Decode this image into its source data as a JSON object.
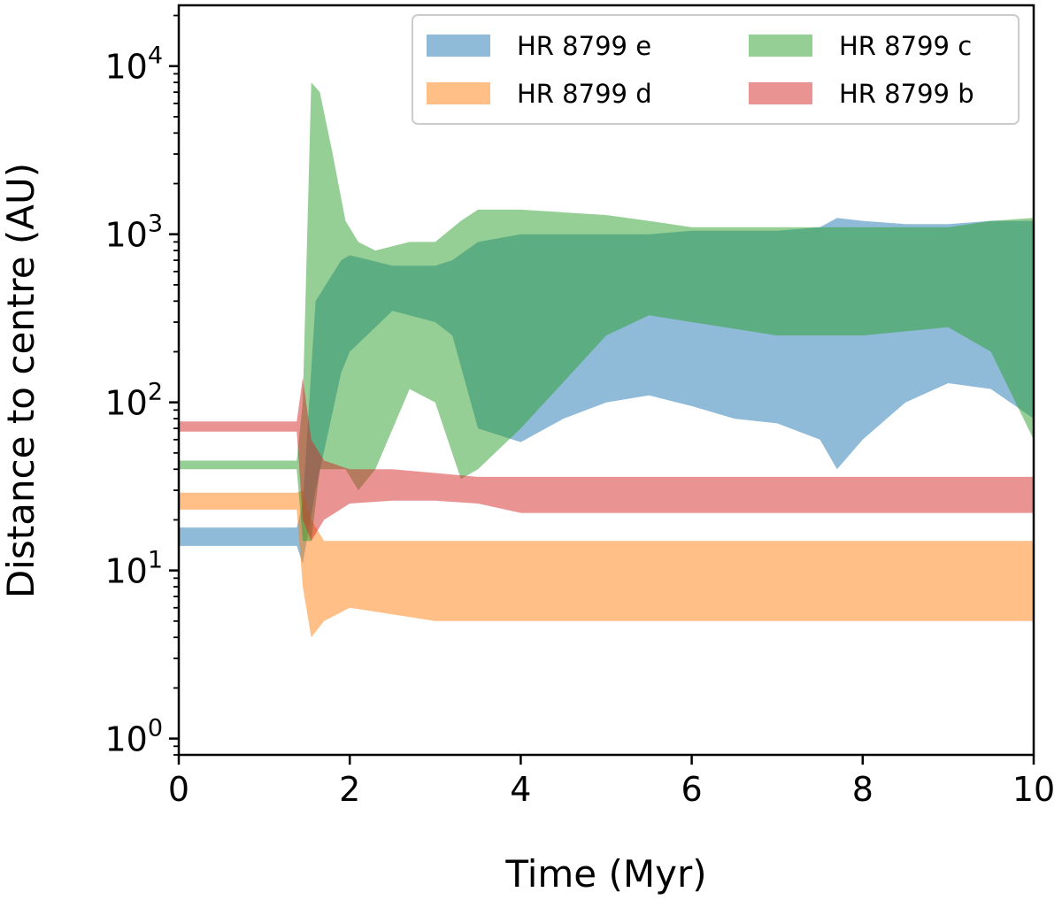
{
  "chart_data": {
    "type": "area",
    "title": "",
    "xlabel": "Time (Myr)",
    "ylabel": "Distance to centre (AU)",
    "xlim": [
      0,
      10
    ],
    "ylim": [
      0.8,
      23000
    ],
    "yscale": "log",
    "grid": false,
    "legend": {
      "placement": "top-right",
      "columns": 2
    },
    "x_ticks": [
      0,
      2,
      4,
      6,
      8,
      10
    ],
    "x_tick_labels": [
      "0",
      "2",
      "4",
      "6",
      "8",
      "10"
    ],
    "y_ticks": [
      1,
      10,
      100,
      1000,
      10000
    ],
    "y_tick_labels": [
      {
        "base": "10",
        "exp": "0"
      },
      {
        "base": "10",
        "exp": "1"
      },
      {
        "base": "10",
        "exp": "2"
      },
      {
        "base": "10",
        "exp": "3"
      },
      {
        "base": "10",
        "exp": "4"
      }
    ],
    "series": [
      {
        "name": "HR 8799 e",
        "color": "#1f77b4",
        "x": [
          0,
          1.38,
          1.45,
          1.6,
          1.9,
          2.0,
          2.5,
          3.0,
          3.2,
          3.5,
          4.0,
          4.5,
          5.0,
          5.5,
          6.0,
          6.5,
          7.0,
          7.5,
          7.7,
          8.0,
          8.5,
          9.0,
          9.5,
          10.0
        ],
        "lower": [
          14,
          14,
          11,
          30,
          150,
          200,
          350,
          300,
          250,
          70,
          58,
          80,
          100,
          110,
          95,
          80,
          75,
          60,
          40,
          60,
          100,
          130,
          120,
          80
        ],
        "upper": [
          18,
          18,
          25,
          400,
          700,
          750,
          650,
          650,
          700,
          900,
          1000,
          1000,
          1000,
          1000,
          1050,
          1050,
          1050,
          1100,
          1250,
          1200,
          1150,
          1150,
          1200,
          1200
        ]
      },
      {
        "name": "HR 8799 d",
        "color": "#ff7f0e",
        "x": [
          0,
          1.38,
          1.45,
          1.55,
          1.7,
          2.0,
          3.0,
          4.0,
          5.0,
          6.0,
          7.0,
          8.0,
          9.0,
          10.0
        ],
        "lower": [
          23,
          23,
          8,
          4,
          5,
          6,
          5,
          5,
          5,
          5,
          5,
          5,
          5,
          5
        ],
        "upper": [
          29,
          29,
          30,
          20,
          15,
          15,
          15,
          15,
          15,
          15,
          15,
          15,
          15,
          15
        ]
      },
      {
        "name": "HR 8799 c",
        "color": "#2ca02c",
        "x": [
          0,
          1.38,
          1.45,
          1.55,
          1.65,
          1.8,
          1.95,
          2.1,
          2.3,
          2.7,
          3.0,
          3.3,
          3.5,
          4.0,
          5.0,
          5.5,
          6.0,
          7.0,
          8.0,
          9.0,
          9.5,
          10.0
        ],
        "lower": [
          40,
          40,
          15,
          15,
          40,
          40,
          40,
          30,
          40,
          120,
          100,
          35,
          40,
          70,
          250,
          330,
          300,
          250,
          250,
          280,
          200,
          60
        ],
        "upper": [
          45,
          45,
          100,
          8000,
          7000,
          3000,
          1200,
          900,
          800,
          900,
          900,
          1200,
          1400,
          1400,
          1300,
          1200,
          1100,
          1100,
          1100,
          1100,
          1200,
          1250
        ]
      },
      {
        "name": "HR 8799 b",
        "color": "#d62728",
        "x": [
          0,
          1.38,
          1.45,
          1.55,
          1.7,
          2.0,
          2.5,
          3.0,
          3.5,
          4.0,
          5.0,
          6.0,
          7.0,
          8.0,
          9.0,
          10.0
        ],
        "lower": [
          67,
          67,
          20,
          15,
          20,
          25,
          26,
          26,
          25,
          22,
          22,
          22,
          22,
          22,
          22,
          22
        ],
        "upper": [
          77,
          77,
          140,
          60,
          45,
          40,
          40,
          38,
          36,
          36,
          36,
          36,
          36,
          36,
          36,
          36
        ]
      }
    ]
  }
}
